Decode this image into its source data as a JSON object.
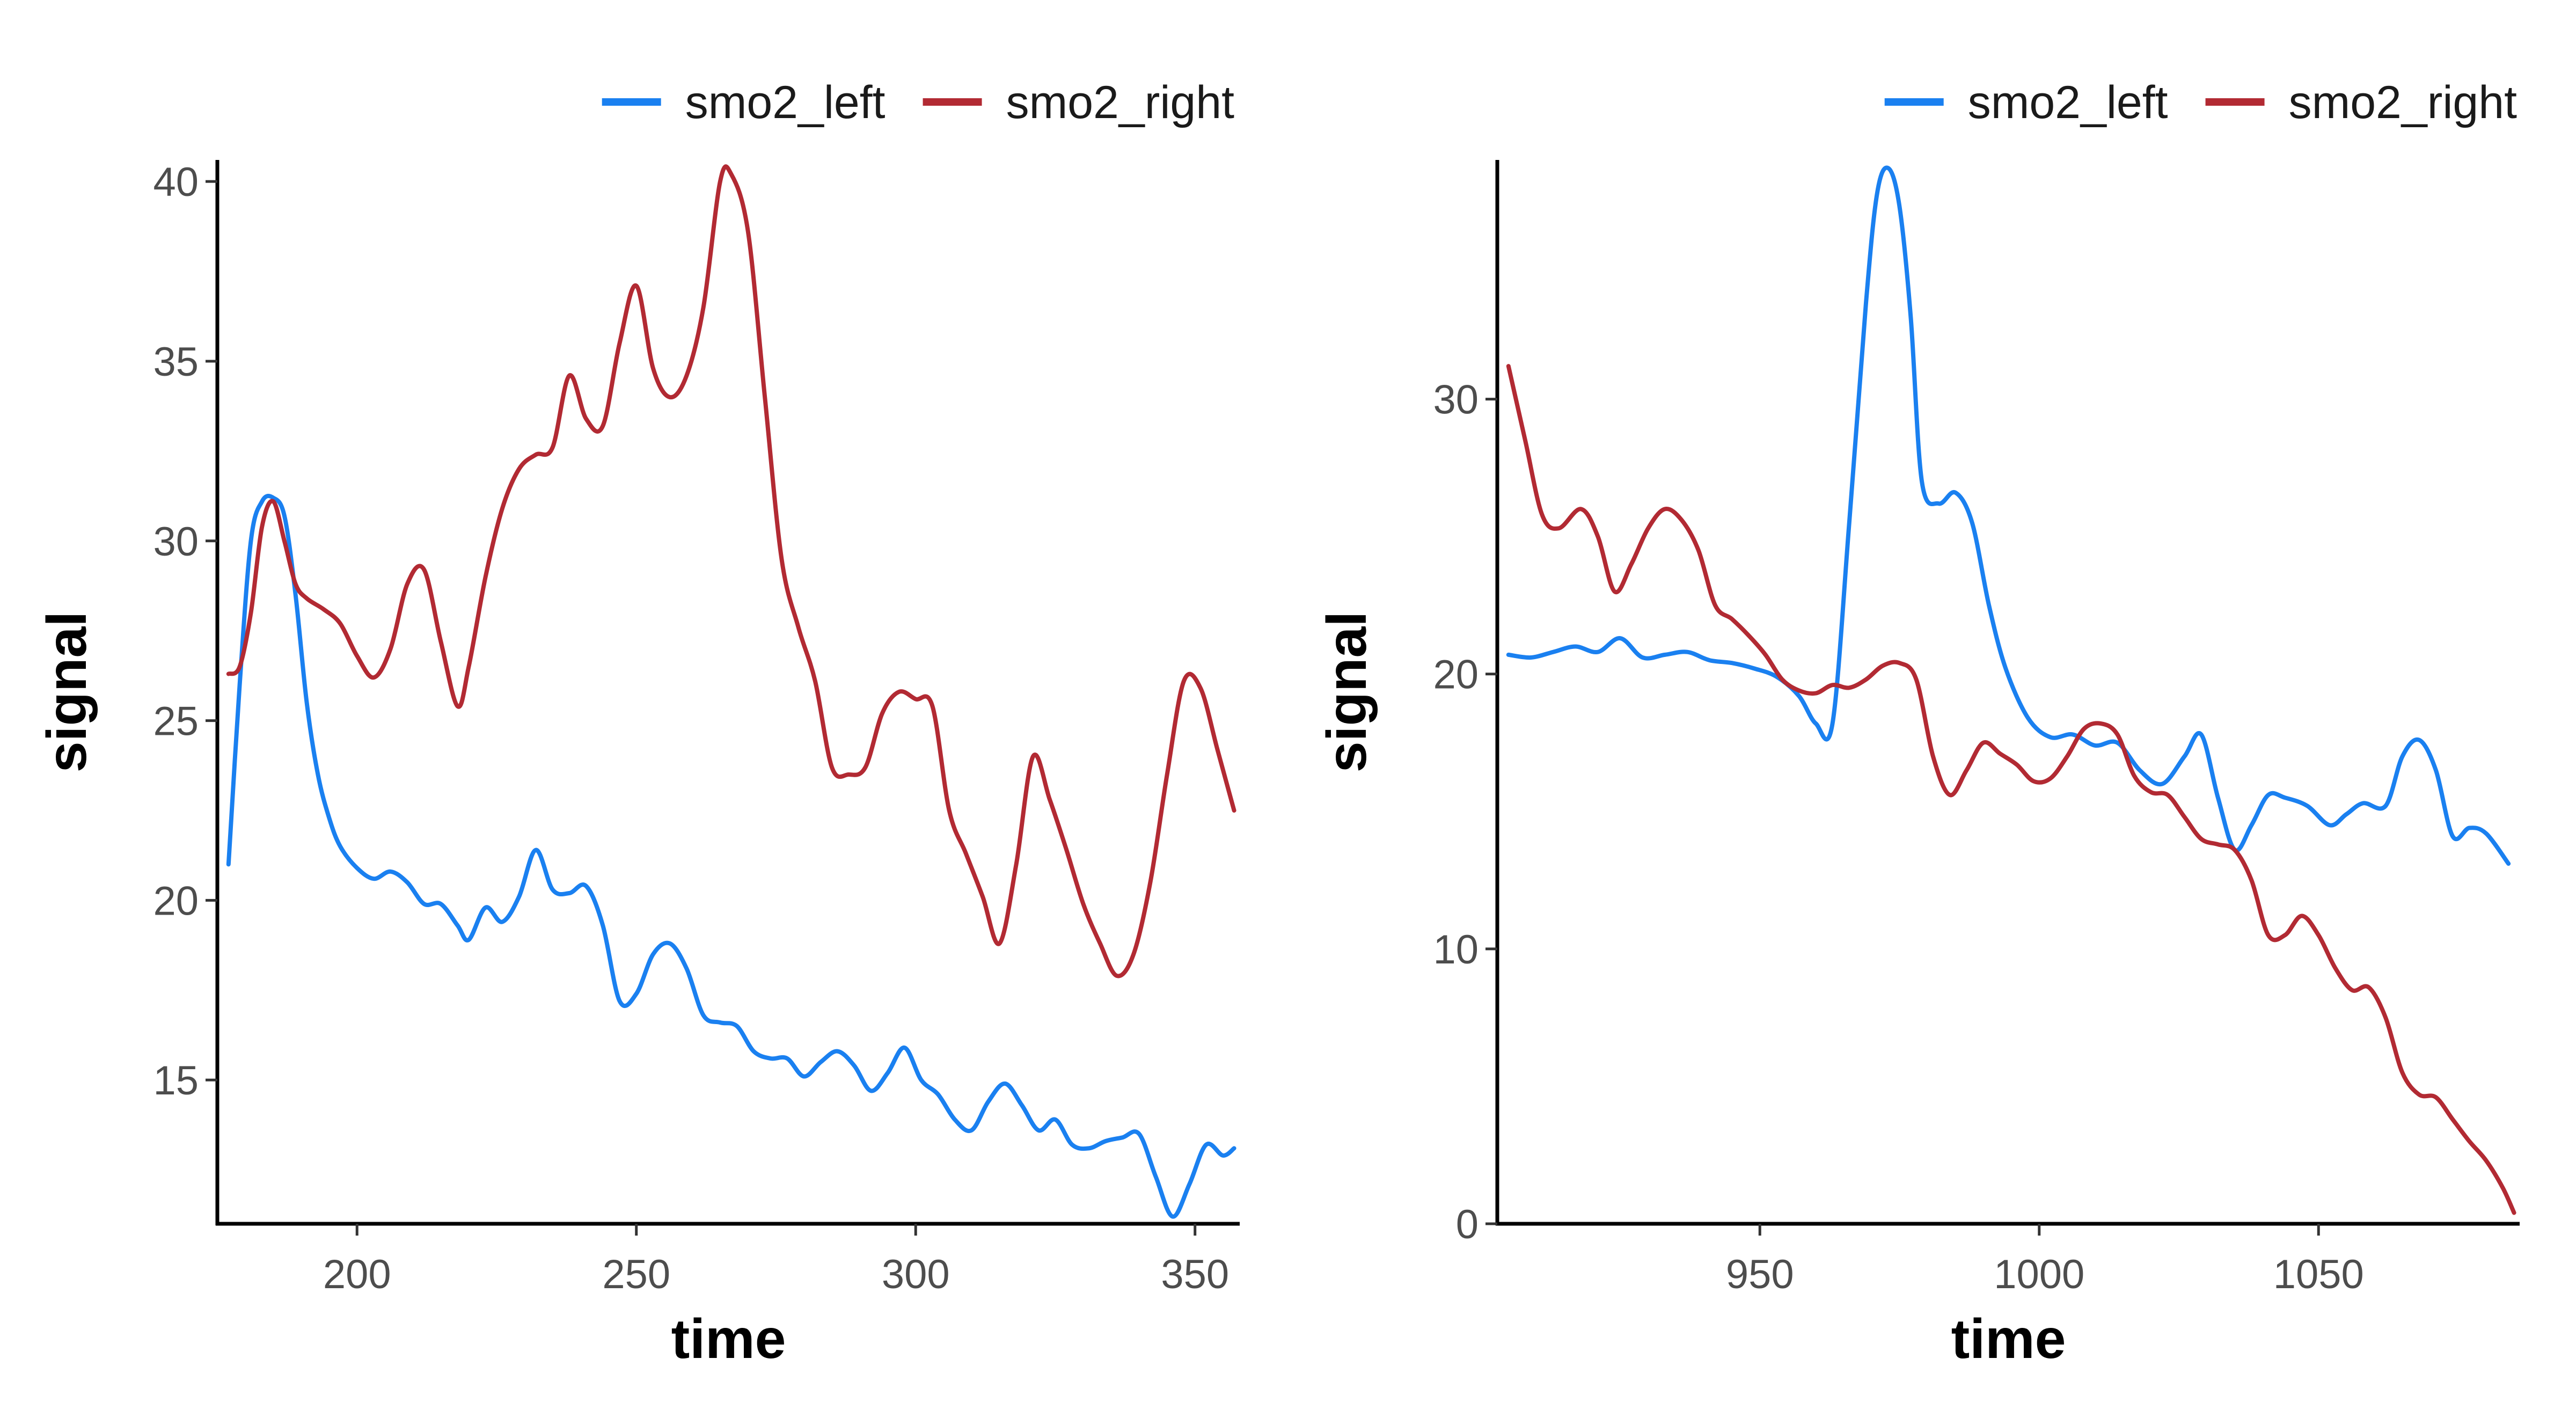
{
  "colors": {
    "smo2_left": "#1a80f0",
    "smo2_right": "#b22a33"
  },
  "chart_data": [
    {
      "type": "line",
      "title": "",
      "xlabel": "time",
      "ylabel": "signal",
      "xlim": [
        175,
        358
      ],
      "ylim": [
        11,
        40.6
      ],
      "xticks": [
        200,
        250,
        300,
        350
      ],
      "yticks": [
        15,
        20,
        25,
        30,
        35,
        40
      ],
      "xtick_labels": [
        "200",
        "250",
        "300",
        "350"
      ],
      "ytick_labels": [
        "15",
        "20",
        "25",
        "30",
        "35",
        "40"
      ],
      "grid": false,
      "legend_position": "top-right",
      "legend": [
        "smo2_left",
        "smo2_right"
      ],
      "series": [
        {
          "name": "smo2_left",
          "color": "#1a80f0",
          "x": [
            177,
            179,
            181,
            183,
            185,
            187,
            189,
            191,
            193,
            195,
            197,
            200,
            203,
            206,
            209,
            212,
            215,
            218,
            220,
            223,
            226,
            229,
            232,
            235,
            238,
            241,
            244,
            247,
            250,
            253,
            256,
            259,
            262,
            265,
            268,
            271,
            274,
            277,
            280,
            283,
            286,
            289,
            292,
            295,
            298,
            301,
            304,
            307,
            310,
            313,
            316,
            319,
            322,
            325,
            328,
            331,
            334,
            337,
            340,
            343,
            346,
            349,
            352,
            355,
            357
          ],
          "y": [
            21,
            26,
            30,
            31.1,
            31.2,
            30.7,
            28.5,
            25.5,
            23.5,
            22.3,
            21.5,
            20.9,
            20.6,
            20.8,
            20.5,
            19.9,
            19.9,
            19.3,
            18.9,
            19.8,
            19.4,
            20.1,
            21.4,
            20.3,
            20.2,
            20.4,
            19.3,
            17.2,
            17.4,
            18.5,
            18.8,
            18.1,
            16.8,
            16.6,
            16.5,
            15.8,
            15.6,
            15.6,
            15.1,
            15.5,
            15.8,
            15.4,
            14.7,
            15.2,
            15.9,
            15,
            14.6,
            13.9,
            13.6,
            14.4,
            14.9,
            14.3,
            13.6,
            13.9,
            13.2,
            13.1,
            13.3,
            13.4,
            13.5,
            12.3,
            11.2,
            12.1,
            13.2,
            12.9,
            13.1
          ]
        },
        {
          "name": "smo2_right",
          "color": "#b22a33",
          "x": [
            177,
            179,
            181,
            183,
            185,
            187,
            189,
            191,
            194,
            197,
            200,
            203,
            206,
            209,
            212,
            215,
            218,
            220,
            223,
            226,
            229,
            232,
            235,
            238,
            241,
            244,
            247,
            250,
            253,
            256,
            259,
            262,
            265,
            267,
            270,
            273,
            276,
            279,
            282,
            285,
            288,
            291,
            294,
            297,
            300,
            303,
            306,
            309,
            312,
            315,
            318,
            321,
            324,
            327,
            330,
            333,
            336,
            339,
            342,
            345,
            348,
            351,
            354,
            357
          ],
          "y": [
            26.3,
            26.5,
            28,
            30.4,
            31.1,
            30,
            28.8,
            28.4,
            28.1,
            27.7,
            26.8,
            26.2,
            27,
            28.8,
            29.2,
            27.2,
            25.4,
            26.5,
            29,
            30.9,
            32,
            32.4,
            32.6,
            34.6,
            33.4,
            33.2,
            35.5,
            37.1,
            34.8,
            34,
            34.6,
            36.5,
            40,
            40.2,
            38.6,
            34,
            29.5,
            27.6,
            26.1,
            23.7,
            23.5,
            23.7,
            25.2,
            25.8,
            25.6,
            25.4,
            22.5,
            21.3,
            20.1,
            18.8,
            21,
            24,
            22.8,
            21.4,
            19.9,
            18.8,
            17.9,
            18.5,
            20.5,
            23.5,
            26.1,
            25.9,
            24.2,
            22.5
          ]
        }
      ]
    },
    {
      "type": "line",
      "title": "",
      "xlabel": "time",
      "ylabel": "signal",
      "xlim": [
        903,
        1086
      ],
      "ylim": [
        0,
        38.7
      ],
      "xticks": [
        950,
        1000,
        1050
      ],
      "yticks": [
        0,
        10,
        20,
        30
      ],
      "xtick_labels": [
        "950",
        "1000",
        "1050"
      ],
      "ytick_labels": [
        "0",
        "10",
        "20",
        "30"
      ],
      "grid": false,
      "legend_position": "top-right",
      "legend": [
        "smo2_left",
        "smo2_right"
      ],
      "series": [
        {
          "name": "smo2_left",
          "color": "#1a80f0",
          "x": [
            905,
            909,
            913,
            917,
            921,
            925,
            929,
            933,
            937,
            941,
            945,
            949,
            953,
            957,
            960,
            963,
            966,
            969,
            971,
            973,
            975,
            977,
            979,
            982,
            985,
            988,
            991,
            994,
            998,
            1002,
            1006,
            1010,
            1014,
            1018,
            1022,
            1026,
            1029,
            1032,
            1035,
            1038,
            1041,
            1044,
            1048,
            1052,
            1055,
            1058,
            1062,
            1065,
            1068,
            1071,
            1074,
            1077,
            1080,
            1084
          ],
          "y": [
            20.7,
            20.6,
            20.8,
            21,
            20.8,
            21.3,
            20.6,
            20.7,
            20.8,
            20.5,
            20.4,
            20.2,
            19.9,
            19.2,
            18.2,
            18.2,
            25.5,
            33.5,
            37.5,
            38.4,
            37,
            33,
            27,
            26.2,
            26.6,
            25.5,
            22.5,
            20.2,
            18.4,
            17.7,
            17.8,
            17.4,
            17.5,
            16.5,
            16,
            17,
            17.8,
            15.5,
            13.6,
            14.5,
            15.6,
            15.5,
            15.2,
            14.5,
            14.9,
            15.3,
            15.2,
            17,
            17.6,
            16.5,
            14.1,
            14.4,
            14.2,
            13.1
          ]
        },
        {
          "name": "smo2_right",
          "color": "#b22a33",
          "x": [
            905,
            908,
            911,
            914,
            918,
            921,
            924,
            927,
            930,
            933,
            936,
            939,
            942,
            945,
            948,
            951,
            954,
            957,
            960,
            963,
            966,
            969,
            972,
            975,
            978,
            981,
            984,
            987,
            990,
            993,
            996,
            999,
            1002,
            1005,
            1008,
            1011,
            1014,
            1017,
            1020,
            1023,
            1026,
            1029,
            1032,
            1035,
            1038,
            1041,
            1044,
            1047,
            1050,
            1053,
            1056,
            1059,
            1062,
            1065,
            1068,
            1071,
            1074,
            1077,
            1080,
            1083,
            1085
          ],
          "y": [
            31.2,
            28.5,
            25.8,
            25.3,
            26,
            25,
            23,
            24,
            25.3,
            26,
            25.6,
            24.5,
            22.5,
            22,
            21.4,
            20.7,
            19.8,
            19.4,
            19.3,
            19.6,
            19.5,
            19.8,
            20.3,
            20.4,
            19.8,
            17,
            15.6,
            16.5,
            17.5,
            17.1,
            16.7,
            16.1,
            16.2,
            17,
            18,
            18.2,
            17.8,
            16.3,
            15.7,
            15.6,
            14.8,
            14,
            13.8,
            13.6,
            12.5,
            10.5,
            10.5,
            11.2,
            10.5,
            9.3,
            8.5,
            8.6,
            7.5,
            5.5,
            4.7,
            4.6,
            3.8,
            3,
            2.3,
            1.3,
            0.4
          ]
        }
      ]
    }
  ]
}
